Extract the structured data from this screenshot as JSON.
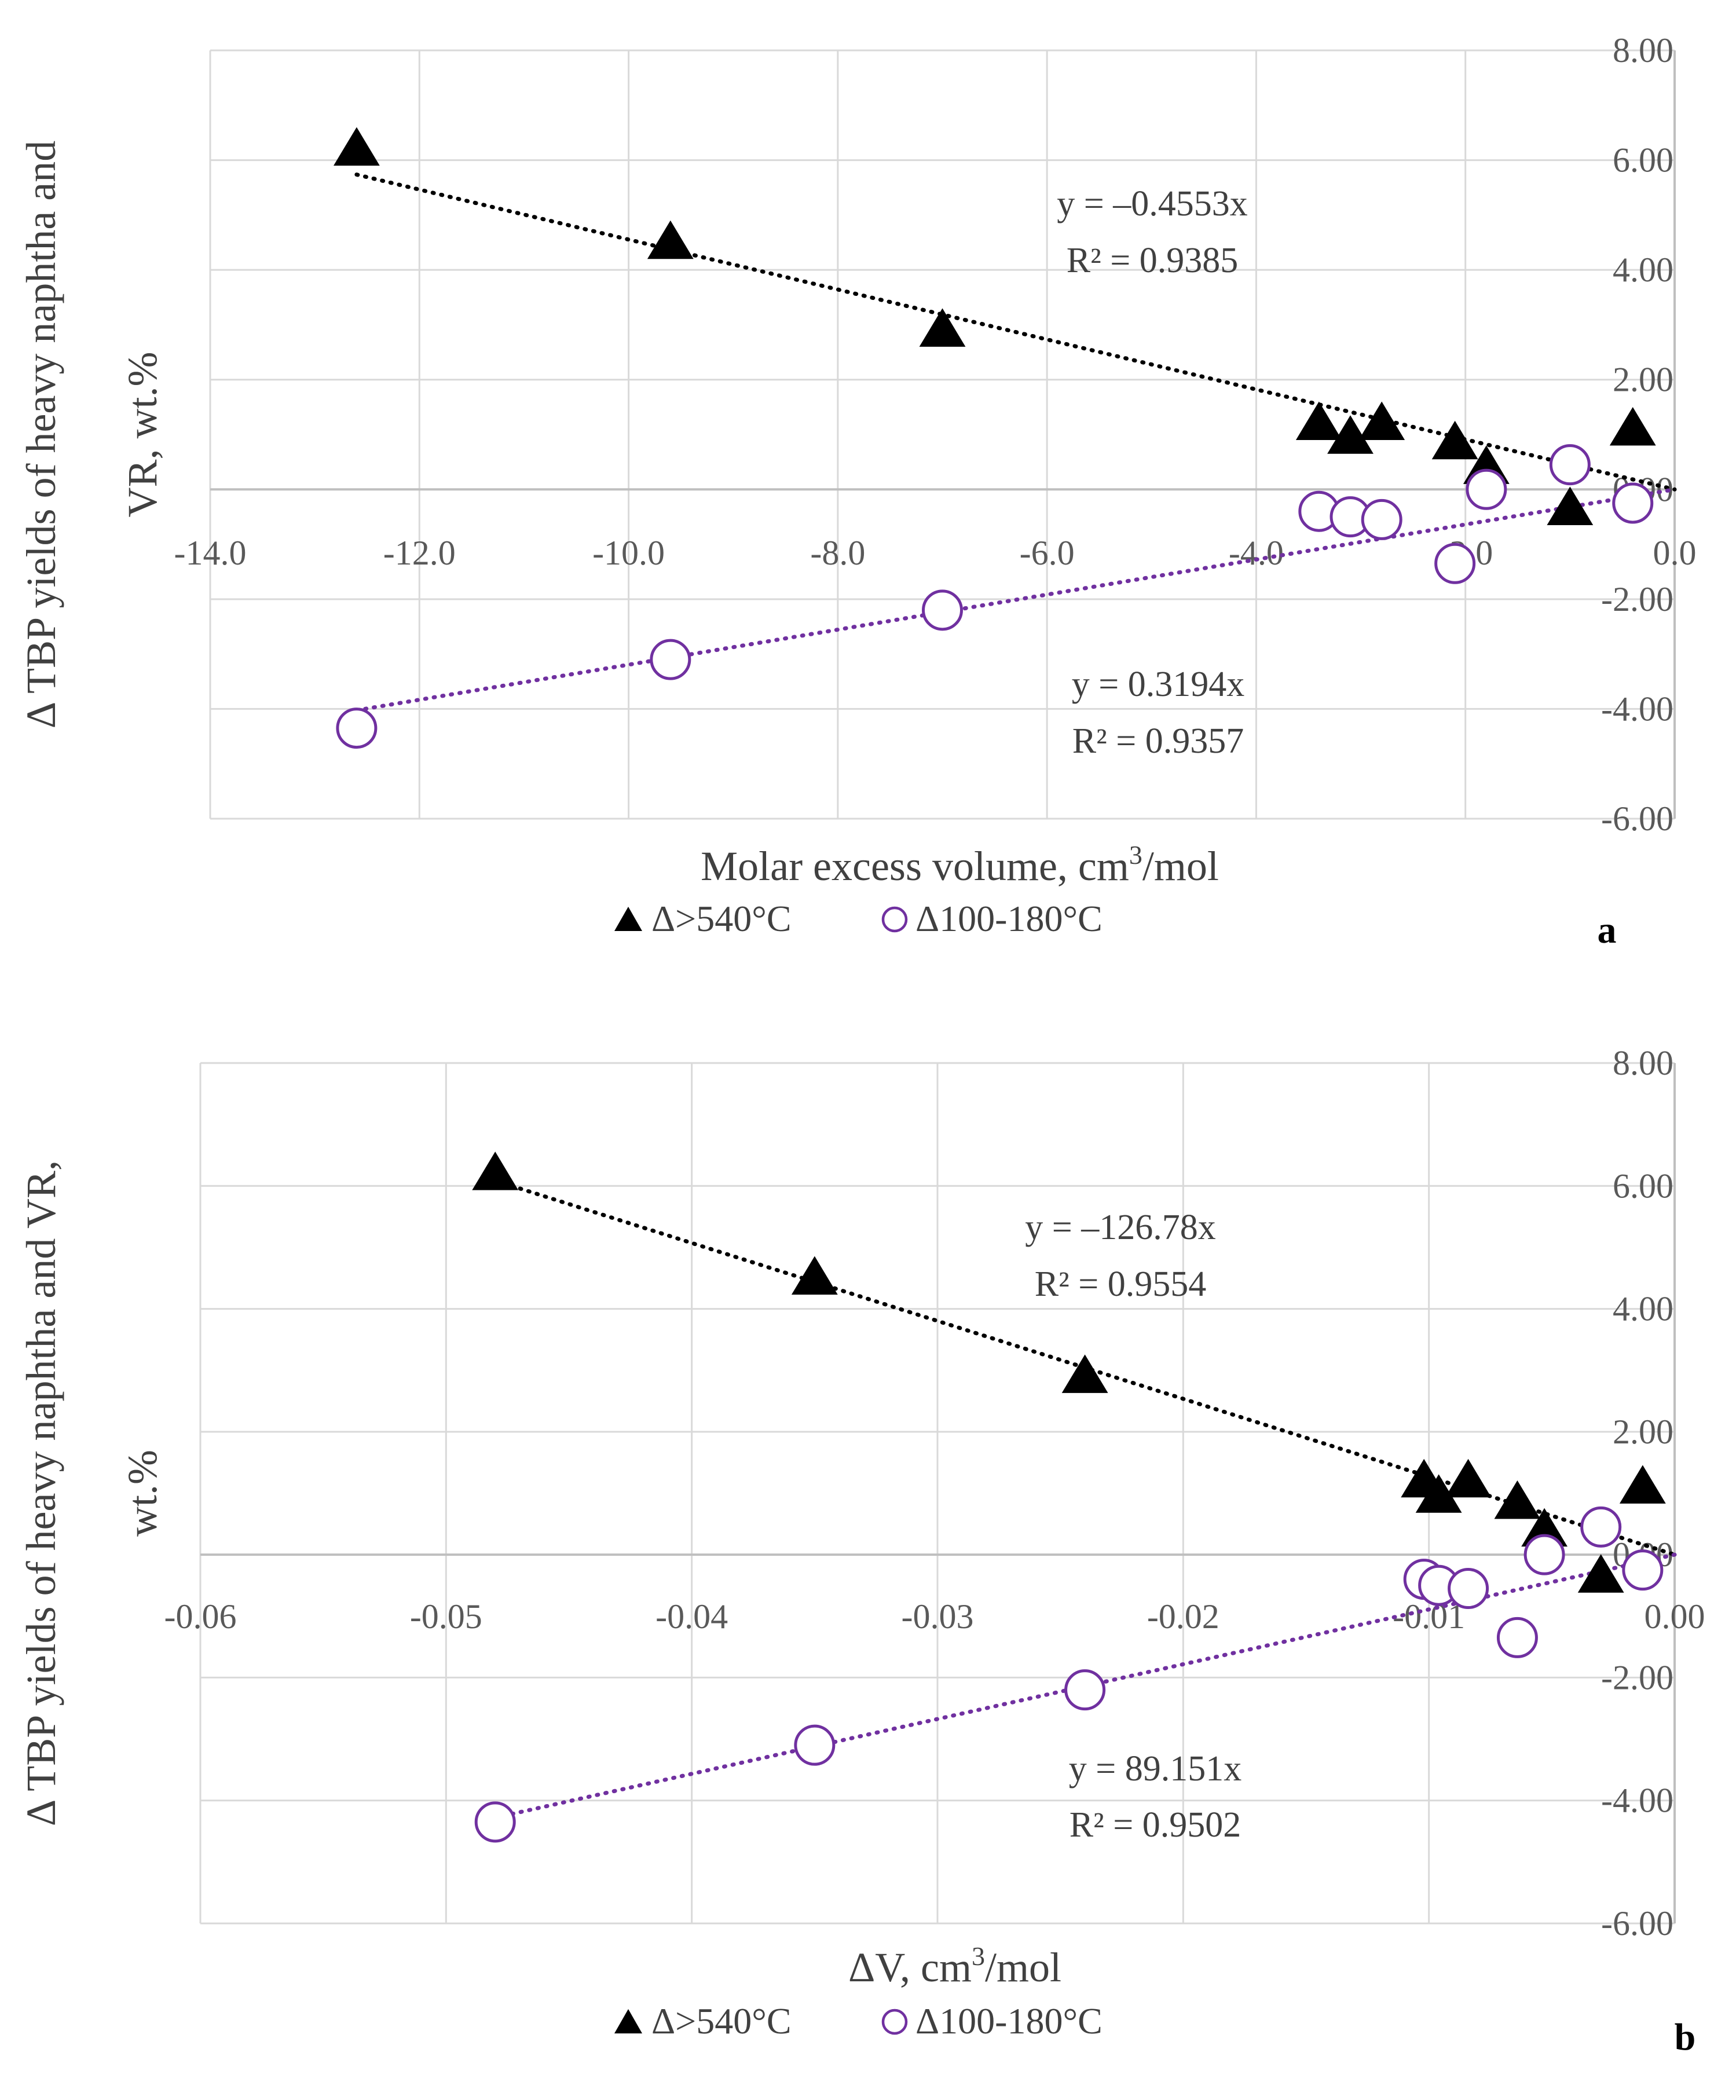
{
  "chart_data": [
    {
      "type": "scatter",
      "panel_label": "a",
      "xlabel_main": "Molar excess volume, cm",
      "xlabel_sup": "3",
      "xlabel_tail": "/mol",
      "ylabel_lines": [
        "Δ TBP yields of heavy naphtha and",
        "VR, wt.%"
      ],
      "xlim": [
        -14.0,
        0.0
      ],
      "ylim": [
        -6.0,
        8.0
      ],
      "xticks": [
        -14,
        -12,
        -10,
        -8,
        -6,
        -4,
        -2,
        0
      ],
      "xtick_labels": [
        "-14.0",
        "-12.0",
        "-10.0",
        "-8.0",
        "-6.0",
        "-4.0",
        "-2.0",
        "0.0"
      ],
      "yticks": [
        -6,
        -4,
        -2,
        0,
        2,
        4,
        6,
        8
      ],
      "ytick_labels": [
        "-6.00",
        "-4.00",
        "-2.00",
        "0.00",
        "2.00",
        "4.00",
        "6.00",
        "8.00"
      ],
      "grid": true,
      "legend_position": "bottom-center",
      "series": [
        {
          "name": "Δ>540°C",
          "marker": "triangle",
          "color": "#000000",
          "x": [
            -12.6,
            -9.6,
            -7.0,
            -3.4,
            -3.1,
            -2.8,
            -2.1,
            -1.8,
            -1.0,
            -0.4
          ],
          "y": [
            6.2,
            4.5,
            2.9,
            1.2,
            0.95,
            1.2,
            0.85,
            0.4,
            -0.35,
            1.1
          ],
          "trend_slope": -0.4553,
          "trend_from": -12.6,
          "trend_to": 0,
          "equation": "y = –0.4553x",
          "r2": "R² = 0.9385"
        },
        {
          "name": "Δ100-180°C",
          "marker": "circle",
          "color": "#7030a0",
          "x": [
            -12.6,
            -9.6,
            -7.0,
            -3.4,
            -3.1,
            -2.8,
            -2.1,
            -1.8,
            -1.0,
            -0.4
          ],
          "y": [
            -4.35,
            -3.1,
            -2.2,
            -0.4,
            -0.5,
            -0.55,
            -1.35,
            0.0,
            0.45,
            -0.25
          ],
          "trend_slope": 0.3194,
          "trend_from": -12.6,
          "trend_to": 0,
          "equation": "y = 0.3194x",
          "r2": "R² = 0.9357"
        }
      ]
    },
    {
      "type": "scatter",
      "panel_label": "b",
      "xlabel_main": "ΔV, cm",
      "xlabel_sup": "3",
      "xlabel_tail": "/mol",
      "ylabel_lines": [
        "Δ TBP yields of heavy naphtha and VR,",
        "wt.%"
      ],
      "xlim": [
        -0.06,
        0.0
      ],
      "ylim": [
        -6.0,
        8.0
      ],
      "xticks": [
        -0.06,
        -0.05,
        -0.04,
        -0.03,
        -0.02,
        -0.01,
        0
      ],
      "xtick_labels": [
        "-0.06",
        "-0.05",
        "-0.04",
        "-0.03",
        "-0.02",
        "-0.01",
        "0.00"
      ],
      "yticks": [
        -6,
        -4,
        -2,
        0,
        2,
        4,
        6,
        8
      ],
      "ytick_labels": [
        "-6.00",
        "-4.00",
        "-2.00",
        "0.00",
        "2.00",
        "4.00",
        "6.00",
        "8.00"
      ],
      "grid": true,
      "legend_position": "bottom-center",
      "series": [
        {
          "name": "Δ>540°C",
          "marker": "triangle",
          "color": "#000000",
          "x": [
            -0.048,
            -0.035,
            -0.024,
            -0.0102,
            -0.0096,
            -0.0084,
            -0.0064,
            -0.0053,
            -0.003,
            -0.0013
          ],
          "y": [
            6.2,
            4.5,
            2.9,
            1.2,
            0.95,
            1.2,
            0.85,
            0.4,
            -0.35,
            1.1
          ],
          "trend_slope": -126.78,
          "trend_from": -0.048,
          "trend_to": 0,
          "equation": "y = –126.78x",
          "r2": "R² = 0.9554"
        },
        {
          "name": "Δ100-180°C",
          "marker": "circle",
          "color": "#7030a0",
          "x": [
            -0.048,
            -0.035,
            -0.024,
            -0.0102,
            -0.0096,
            -0.0084,
            -0.0064,
            -0.0053,
            -0.003,
            -0.0013
          ],
          "y": [
            -4.35,
            -3.1,
            -2.2,
            -0.4,
            -0.5,
            -0.55,
            -1.35,
            0.0,
            0.45,
            -0.25
          ],
          "trend_slope": 89.151,
          "trend_from": -0.048,
          "trend_to": 0,
          "equation": "y = 89.151x",
          "r2": "R² = 0.9502"
        }
      ]
    }
  ]
}
